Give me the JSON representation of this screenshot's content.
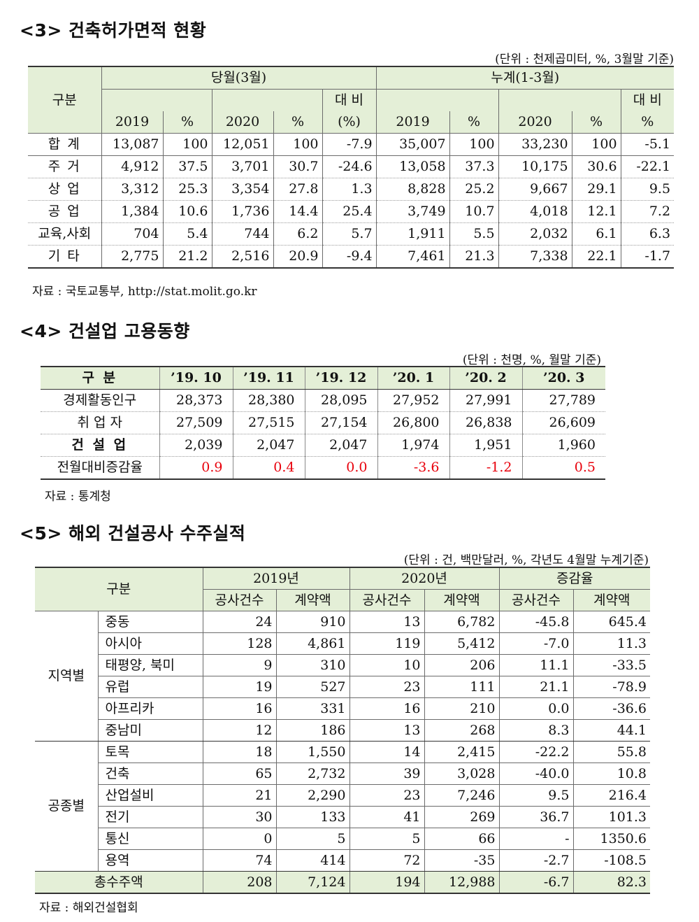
{
  "section3": {
    "title": "<3> 건축허가면적 현황",
    "unit": "(단위 : 천제곱미터, %, 3월말 기준)",
    "header": {
      "gubun": "구분",
      "month": "당월(3월)",
      "cumulative": "누계(1-3월)",
      "y2019": "2019",
      "pct": "%",
      "y2020": "2020",
      "ratio_top": "대 비",
      "ratio_bottom_month": "(%)",
      "ratio_bottom_cum": "%"
    },
    "rows": [
      [
        "합 계",
        "13,087",
        "100",
        "12,051",
        "100",
        "-7.9",
        "35,007",
        "100",
        "33,230",
        "100",
        "-5.1"
      ],
      [
        "주 거",
        "4,912",
        "37.5",
        "3,701",
        "30.7",
        "-24.6",
        "13,058",
        "37.3",
        "10,175",
        "30.6",
        "-22.1"
      ],
      [
        "상 업",
        "3,312",
        "25.3",
        "3,354",
        "27.8",
        "1.3",
        "8,828",
        "25.2",
        "9,667",
        "29.1",
        "9.5"
      ],
      [
        "공 업",
        "1,384",
        "10.6",
        "1,736",
        "14.4",
        "25.4",
        "3,749",
        "10.7",
        "4,018",
        "12.1",
        "7.2"
      ],
      [
        "교육,사회",
        "704",
        "5.4",
        "744",
        "6.2",
        "5.7",
        "1,911",
        "5.5",
        "2,032",
        "6.1",
        "6.3"
      ],
      [
        "기 타",
        "2,775",
        "21.2",
        "2,516",
        "20.9",
        "-9.4",
        "7,461",
        "21.3",
        "7,338",
        "22.1",
        "-1.7"
      ]
    ],
    "source": "자료 : 국토교통부, http://stat.molit.go.kr"
  },
  "section4": {
    "title": "<4> 건설업 고용동향",
    "unit": "(단위 : 천명, %, 월말 기준)",
    "header": [
      "구 분",
      "’19. 10",
      "’19. 11",
      "’19. 12",
      "’20. 1",
      "’20. 2",
      "’20. 3"
    ],
    "rows": [
      [
        "경제활동인구",
        "28,373",
        "28,380",
        "28,095",
        "27,952",
        "27,991",
        "27,789"
      ],
      [
        "취 업 자",
        "27,509",
        "27,515",
        "27,154",
        "26,800",
        "26,838",
        "26,609"
      ],
      [
        "건 설 업",
        "2,039",
        "2,047",
        "2,047",
        "1,974",
        "1,951",
        "1,960"
      ],
      [
        "전월대비증감율",
        "0.9",
        "0.4",
        "0.0",
        "-3.6",
        "-1.2",
        "0.5"
      ]
    ],
    "source": "자료 : 통계청",
    "red_color": "#e8000b"
  },
  "section5": {
    "title": "<5> 해외 건설공사 수주실적",
    "unit": "(단위 : 건, 백만달러, %, 각년도 4월말 누계기준)",
    "header": {
      "gubun": "구분",
      "y2019": "2019년",
      "y2020": "2020년",
      "change": "증감율",
      "count": "공사건수",
      "amount": "계약액"
    },
    "groups": [
      {
        "label": "지역별",
        "rows": [
          [
            "중동",
            "24",
            "910",
            "13",
            "6,782",
            "-45.8",
            "645.4"
          ],
          [
            "아시아",
            "128",
            "4,861",
            "119",
            "5,412",
            "-7.0",
            "11.3"
          ],
          [
            "태평양, 북미",
            "9",
            "310",
            "10",
            "206",
            "11.1",
            "-33.5"
          ],
          [
            "유럽",
            "19",
            "527",
            "23",
            "111",
            "21.1",
            "-78.9"
          ],
          [
            "아프리카",
            "16",
            "331",
            "16",
            "210",
            "0.0",
            "-36.6"
          ],
          [
            "중남미",
            "12",
            "186",
            "13",
            "268",
            "8.3",
            "44.1"
          ]
        ]
      },
      {
        "label": "공종별",
        "rows": [
          [
            "토목",
            "18",
            "1,550",
            "14",
            "2,415",
            "-22.2",
            "55.8"
          ],
          [
            "건축",
            "65",
            "2,732",
            "39",
            "3,028",
            "-40.0",
            "10.8"
          ],
          [
            "산업설비",
            "21",
            "2,290",
            "23",
            "7,246",
            "9.5",
            "216.4"
          ],
          [
            "전기",
            "30",
            "133",
            "41",
            "269",
            "36.7",
            "101.3"
          ],
          [
            "통신",
            "0",
            "5",
            "5",
            "66",
            "-",
            "1350.6"
          ],
          [
            "용역",
            "74",
            "414",
            "72",
            "-35",
            "-2.7",
            "-108.5"
          ]
        ]
      }
    ],
    "total": [
      "총수주액",
      "208",
      "7,124",
      "194",
      "12,988",
      "-6.7",
      "82.3"
    ],
    "source": "자료 : 해외건설협회",
    "header_bg": "#e4efd7"
  }
}
